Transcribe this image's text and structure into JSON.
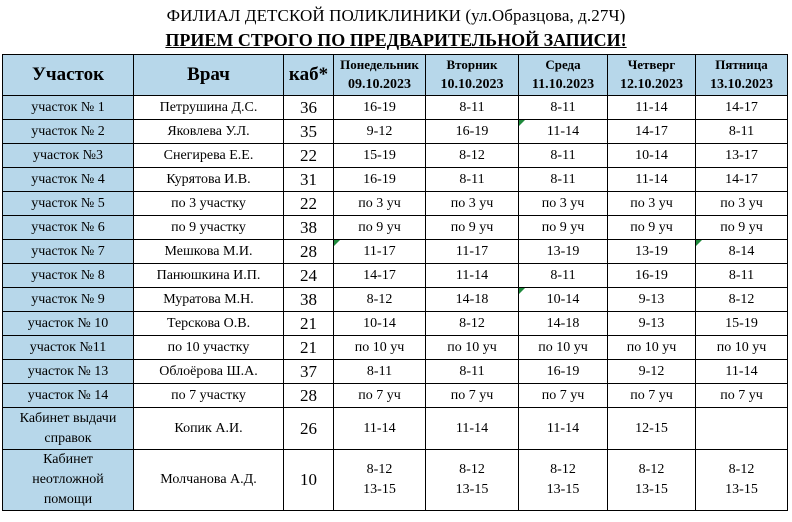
{
  "header": {
    "title": "ФИЛИАЛ ДЕТСКОЙ ПОЛИКЛИНИКИ (ул.Образцова, д.27Ч)",
    "subtitle": "ПРИЕМ СТРОГО ПО ПРЕДВАРИТЕЛЬНОЙ ЗАПИСИ!"
  },
  "columns": {
    "uchastok": "Участок",
    "vrach": "Врач",
    "kab": "каб*",
    "days": [
      {
        "day": "Понедельник",
        "date": "09.10.2023"
      },
      {
        "day": "Вторник",
        "date": "10.10.2023"
      },
      {
        "day": "Среда",
        "date": "11.10.2023"
      },
      {
        "day": "Четверг",
        "date": "12.10.2023"
      },
      {
        "day": "Пятница",
        "date": "13.10.2023"
      }
    ]
  },
  "rows": [
    {
      "uch": "участок № 1",
      "doc": "Петрушина Д.С.",
      "kab": "36",
      "d": [
        "16-19",
        "8-11",
        "8-11",
        "11-14",
        "14-17"
      ]
    },
    {
      "uch": "участок № 2",
      "doc": "Яковлева У.Л.",
      "kab": "35",
      "d": [
        "9-12",
        "16-19",
        "11-14",
        "14-17",
        "8-11"
      ]
    },
    {
      "uch": "участок №3",
      "doc": "Снегирева Е.Е.",
      "kab": "22",
      "d": [
        "15-19",
        "8-12",
        "8-11",
        "10-14",
        "13-17"
      ]
    },
    {
      "uch": "участок № 4",
      "doc": "Курятова И.В.",
      "kab": "31",
      "d": [
        "16-19",
        "8-11",
        "8-11",
        "11-14",
        "14-17"
      ]
    },
    {
      "uch": "участок № 5",
      "doc": "по 3 участку",
      "kab": "22",
      "d": [
        "по 3 уч",
        "по 3 уч",
        "по 3 уч",
        "по 3 уч",
        "по 3 уч"
      ]
    },
    {
      "uch": "участок № 6",
      "doc": "по 9 участку",
      "kab": "38",
      "d": [
        "по 9 уч",
        "по 9 уч",
        "по 9 уч",
        "по 9 уч",
        "по 9 уч"
      ]
    },
    {
      "uch": "участок № 7",
      "doc": "Мешкова М.И.",
      "kab": "28",
      "d": [
        "11-17",
        "11-17",
        "13-19",
        "13-19",
        "8-14"
      ]
    },
    {
      "uch": "участок № 8",
      "doc": "Панюшкина И.П.",
      "kab": "24",
      "d": [
        "14-17",
        "11-14",
        "8-11",
        "16-19",
        "8-11"
      ]
    },
    {
      "uch": "участок № 9",
      "doc": "Муратова М.Н.",
      "kab": "38",
      "d": [
        "8-12",
        "14-18",
        "10-14",
        "9-13",
        "8-12"
      ]
    },
    {
      "uch": "участок № 10",
      "doc": "Терскова О.В.",
      "kab": "21",
      "d": [
        "10-14",
        "8-12",
        "14-18",
        "9-13",
        "15-19"
      ]
    },
    {
      "uch": "участок №11",
      "doc": "по 10 участку",
      "kab": "21",
      "d": [
        "по 10 уч",
        "по 10 уч",
        "по 10 уч",
        "по 10 уч",
        "по 10 уч"
      ]
    },
    {
      "uch": "участок № 13",
      "doc": "Облоёрова Ш.А.",
      "kab": "37",
      "d": [
        "8-11",
        "8-11",
        "16-19",
        "9-12",
        "11-14"
      ]
    },
    {
      "uch": "участок № 14",
      "doc": "по 7 участку",
      "kab": "28",
      "d": [
        "по 7 уч",
        "по 7 уч",
        "по 7 уч",
        "по 7 уч",
        "по 7 уч"
      ]
    }
  ],
  "spravki": {
    "uch_line1": "Кабинет выдачи",
    "uch_line2": "справок",
    "doc": "Копик А.И.",
    "kab": "26",
    "d": [
      "11-14",
      "11-14",
      "11-14",
      "12-15",
      ""
    ]
  },
  "neotl": {
    "uch_line1": "Кабинет",
    "uch_line2": "неотложной",
    "uch_line3": "помощи",
    "doc": "Молчанова А.Д.",
    "kab": "10",
    "d": [
      {
        "a": "8-12",
        "b": "13-15"
      },
      {
        "a": "8-12",
        "b": "13-15"
      },
      {
        "a": "8-12",
        "b": "13-15"
      },
      {
        "a": "8-12",
        "b": "13-15"
      },
      {
        "a": "8-12",
        "b": "13-15"
      }
    ]
  }
}
